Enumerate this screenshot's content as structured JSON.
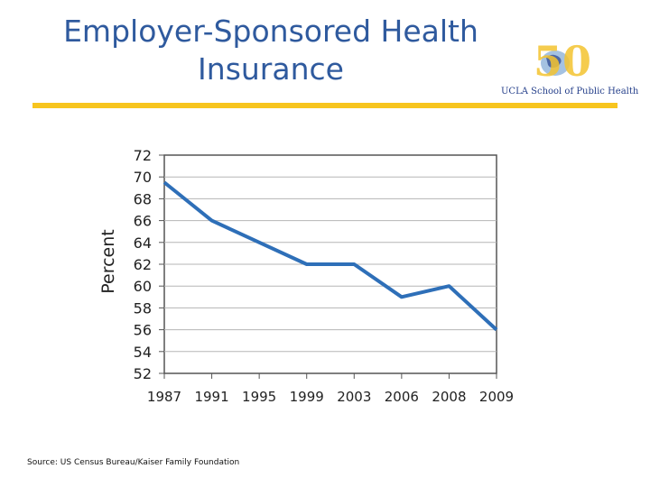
{
  "slide": {
    "title_line1": "Employer-Sponsored Health",
    "title_line2": "Insurance",
    "source": "Source: US Census Bureau/Kaiser Family Foundation"
  },
  "logo": {
    "text": "UCLA School of Public Health",
    "mark": "50",
    "icon": "globe-anniversary-logo-icon"
  },
  "colors": {
    "title": "#2f5a9e",
    "accent_rule": "#f7c51e",
    "line": "#2e6fb8",
    "logo_gold": "#f4c430",
    "logo_blue": "#26408b"
  },
  "chart_data": {
    "type": "line",
    "title": "",
    "xlabel": "",
    "ylabel": "Percent",
    "categories": [
      "1987",
      "1991",
      "1995",
      "1999",
      "2003",
      "2006",
      "2008",
      "2009"
    ],
    "series": [
      {
        "name": "Employer-Sponsored Health Insurance",
        "values": [
          69.5,
          66,
          64,
          62,
          62,
          59,
          60,
          56
        ]
      }
    ],
    "ylim": [
      52,
      72
    ],
    "yticks": [
      72,
      70,
      68,
      66,
      64,
      62,
      60,
      58,
      56,
      54,
      52
    ],
    "grid": true,
    "legend": "none"
  }
}
